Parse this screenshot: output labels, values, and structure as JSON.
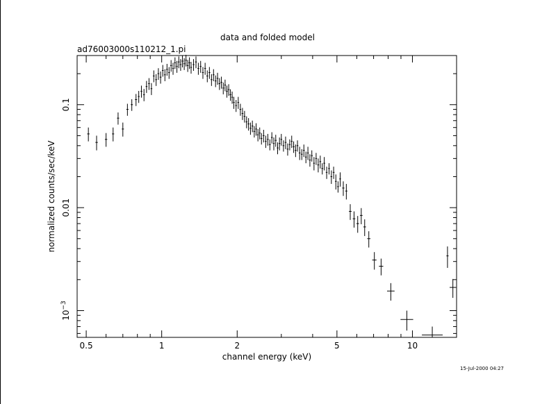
{
  "chart_data": {
    "type": "scatter",
    "title": "data and folded model",
    "subtitle": "ad76003000s110212_1.pi",
    "xlabel": "channel energy (keV)",
    "ylabel": "normalized counts/sec/keV",
    "timestamp": "15-Jul-2000 04:27",
    "x_scale": "log",
    "y_scale": "log",
    "xlim": [
      0.46,
      15.0
    ],
    "ylim": [
      0.00055,
      0.3
    ],
    "x_ticks": [
      {
        "value": 0.5,
        "label": "0.5"
      },
      {
        "value": 1,
        "label": "1"
      },
      {
        "value": 2,
        "label": "2"
      },
      {
        "value": 5,
        "label": "5"
      },
      {
        "value": 10,
        "label": "10"
      }
    ],
    "y_ticks": [
      {
        "value": 0.1,
        "label": "0.1"
      },
      {
        "value": 0.01,
        "label": "0.01"
      },
      {
        "value": 0.001,
        "label": "10",
        "sup": "−3"
      }
    ],
    "grid": false,
    "points": [
      [
        0.51,
        0.052,
        0.011,
        0.008
      ],
      [
        0.55,
        0.043,
        0.011,
        0.007
      ],
      [
        0.6,
        0.046,
        0.011,
        0.007
      ],
      [
        0.64,
        0.052,
        0.01,
        0.008
      ],
      [
        0.67,
        0.074,
        0.01,
        0.01
      ],
      [
        0.7,
        0.058,
        0.01,
        0.009
      ],
      [
        0.73,
        0.09,
        0.01,
        0.012
      ],
      [
        0.76,
        0.1,
        0.01,
        0.013
      ],
      [
        0.79,
        0.112,
        0.01,
        0.015
      ],
      [
        0.81,
        0.12,
        0.008,
        0.016
      ],
      [
        0.83,
        0.135,
        0.008,
        0.018
      ],
      [
        0.85,
        0.125,
        0.008,
        0.017
      ],
      [
        0.87,
        0.15,
        0.008,
        0.02
      ],
      [
        0.89,
        0.16,
        0.008,
        0.021
      ],
      [
        0.91,
        0.143,
        0.008,
        0.019
      ],
      [
        0.93,
        0.19,
        0.008,
        0.025
      ],
      [
        0.95,
        0.175,
        0.008,
        0.023
      ],
      [
        0.97,
        0.2,
        0.008,
        0.026
      ],
      [
        0.99,
        0.185,
        0.008,
        0.025
      ],
      [
        1.01,
        0.215,
        0.008,
        0.028
      ],
      [
        1.03,
        0.195,
        0.008,
        0.026
      ],
      [
        1.05,
        0.22,
        0.008,
        0.029
      ],
      [
        1.07,
        0.205,
        0.008,
        0.027
      ],
      [
        1.09,
        0.24,
        0.008,
        0.031
      ],
      [
        1.11,
        0.225,
        0.008,
        0.03
      ],
      [
        1.13,
        0.255,
        0.008,
        0.033
      ],
      [
        1.15,
        0.235,
        0.008,
        0.031
      ],
      [
        1.17,
        0.26,
        0.008,
        0.034
      ],
      [
        1.19,
        0.245,
        0.008,
        0.032
      ],
      [
        1.21,
        0.265,
        0.008,
        0.035
      ],
      [
        1.23,
        0.25,
        0.008,
        0.033
      ],
      [
        1.25,
        0.27,
        0.008,
        0.035
      ],
      [
        1.27,
        0.24,
        0.008,
        0.032
      ],
      [
        1.29,
        0.255,
        0.008,
        0.033
      ],
      [
        1.31,
        0.23,
        0.008,
        0.03
      ],
      [
        1.34,
        0.245,
        0.008,
        0.032
      ],
      [
        1.37,
        0.26,
        0.008,
        0.034
      ],
      [
        1.4,
        0.225,
        0.008,
        0.03
      ],
      [
        1.43,
        0.235,
        0.008,
        0.031
      ],
      [
        1.46,
        0.205,
        0.008,
        0.027
      ],
      [
        1.49,
        0.225,
        0.008,
        0.03
      ],
      [
        1.52,
        0.19,
        0.008,
        0.025
      ],
      [
        1.55,
        0.205,
        0.008,
        0.027
      ],
      [
        1.58,
        0.175,
        0.008,
        0.023
      ],
      [
        1.61,
        0.195,
        0.008,
        0.026
      ],
      [
        1.64,
        0.17,
        0.008,
        0.022
      ],
      [
        1.67,
        0.18,
        0.008,
        0.024
      ],
      [
        1.7,
        0.16,
        0.008,
        0.021
      ],
      [
        1.73,
        0.165,
        0.008,
        0.022
      ],
      [
        1.76,
        0.145,
        0.008,
        0.019
      ],
      [
        1.79,
        0.155,
        0.008,
        0.02
      ],
      [
        1.82,
        0.135,
        0.008,
        0.018
      ],
      [
        1.85,
        0.14,
        0.008,
        0.018
      ],
      [
        1.88,
        0.125,
        0.008,
        0.016
      ],
      [
        1.91,
        0.118,
        0.008,
        0.016
      ],
      [
        1.94,
        0.105,
        0.008,
        0.014
      ],
      [
        1.98,
        0.098,
        0.008,
        0.013
      ],
      [
        2.02,
        0.105,
        0.008,
        0.014
      ],
      [
        2.06,
        0.09,
        0.008,
        0.012
      ],
      [
        2.1,
        0.082,
        0.008,
        0.011
      ],
      [
        2.14,
        0.077,
        0.008,
        0.01
      ],
      [
        2.18,
        0.068,
        0.008,
        0.009
      ],
      [
        2.22,
        0.065,
        0.008,
        0.009
      ],
      [
        2.26,
        0.059,
        0.008,
        0.008
      ],
      [
        2.3,
        0.062,
        0.008,
        0.008
      ],
      [
        2.34,
        0.055,
        0.008,
        0.007
      ],
      [
        2.38,
        0.058,
        0.008,
        0.008
      ],
      [
        2.42,
        0.051,
        0.008,
        0.007
      ],
      [
        2.46,
        0.053,
        0.008,
        0.007
      ],
      [
        2.5,
        0.047,
        0.008,
        0.006
      ],
      [
        2.55,
        0.05,
        0.008,
        0.007
      ],
      [
        2.6,
        0.044,
        0.008,
        0.006
      ],
      [
        2.65,
        0.046,
        0.008,
        0.006
      ],
      [
        2.7,
        0.041,
        0.008,
        0.005
      ],
      [
        2.75,
        0.048,
        0.008,
        0.006
      ],
      [
        2.8,
        0.042,
        0.008,
        0.006
      ],
      [
        2.85,
        0.045,
        0.008,
        0.006
      ],
      [
        2.9,
        0.038,
        0.008,
        0.005
      ],
      [
        2.95,
        0.042,
        0.008,
        0.006
      ],
      [
        3.0,
        0.046,
        0.008,
        0.006
      ],
      [
        3.06,
        0.04,
        0.008,
        0.005
      ],
      [
        3.12,
        0.043,
        0.008,
        0.006
      ],
      [
        3.18,
        0.037,
        0.008,
        0.005
      ],
      [
        3.24,
        0.041,
        0.008,
        0.005
      ],
      [
        3.3,
        0.044,
        0.008,
        0.006
      ],
      [
        3.36,
        0.039,
        0.008,
        0.005
      ],
      [
        3.42,
        0.036,
        0.008,
        0.005
      ],
      [
        3.48,
        0.04,
        0.008,
        0.005
      ],
      [
        3.55,
        0.034,
        0.008,
        0.005
      ],
      [
        3.62,
        0.033,
        0.008,
        0.004
      ],
      [
        3.69,
        0.036,
        0.008,
        0.005
      ],
      [
        3.76,
        0.031,
        0.008,
        0.004
      ],
      [
        3.83,
        0.034,
        0.008,
        0.005
      ],
      [
        3.9,
        0.029,
        0.008,
        0.004
      ],
      [
        3.97,
        0.032,
        0.008,
        0.004
      ],
      [
        4.05,
        0.027,
        0.008,
        0.004
      ],
      [
        4.13,
        0.03,
        0.008,
        0.004
      ],
      [
        4.21,
        0.026,
        0.008,
        0.004
      ],
      [
        4.29,
        0.028,
        0.008,
        0.004
      ],
      [
        4.37,
        0.024,
        0.008,
        0.003
      ],
      [
        4.45,
        0.027,
        0.008,
        0.004
      ],
      [
        4.55,
        0.022,
        0.008,
        0.003
      ],
      [
        4.65,
        0.024,
        0.008,
        0.003
      ],
      [
        4.75,
        0.02,
        0.008,
        0.003
      ],
      [
        4.85,
        0.022,
        0.008,
        0.003
      ],
      [
        4.95,
        0.018,
        0.008,
        0.003
      ],
      [
        5.05,
        0.016,
        0.008,
        0.002
      ],
      [
        5.15,
        0.019,
        0.008,
        0.003
      ],
      [
        5.3,
        0.0155,
        0.01,
        0.0025
      ],
      [
        5.45,
        0.0145,
        0.01,
        0.0025
      ],
      [
        5.65,
        0.0092,
        0.012,
        0.0016
      ],
      [
        5.85,
        0.0078,
        0.012,
        0.0014
      ],
      [
        6.05,
        0.007,
        0.012,
        0.0013
      ],
      [
        6.25,
        0.0084,
        0.012,
        0.0015
      ],
      [
        6.45,
        0.0065,
        0.012,
        0.0012
      ],
      [
        6.7,
        0.005,
        0.015,
        0.0009
      ],
      [
        7.05,
        0.0031,
        0.02,
        0.0006
      ],
      [
        7.5,
        0.0027,
        0.02,
        0.0005
      ],
      [
        8.2,
        0.00155,
        0.035,
        0.0003
      ],
      [
        9.5,
        0.00082,
        0.06,
        0.00018
      ],
      [
        12.0,
        0.00058,
        0.1,
        0.00012
      ],
      [
        13.8,
        0.0034,
        0.01,
        0.0008
      ],
      [
        14.5,
        0.00168,
        0.03,
        0.00035
      ]
    ]
  }
}
